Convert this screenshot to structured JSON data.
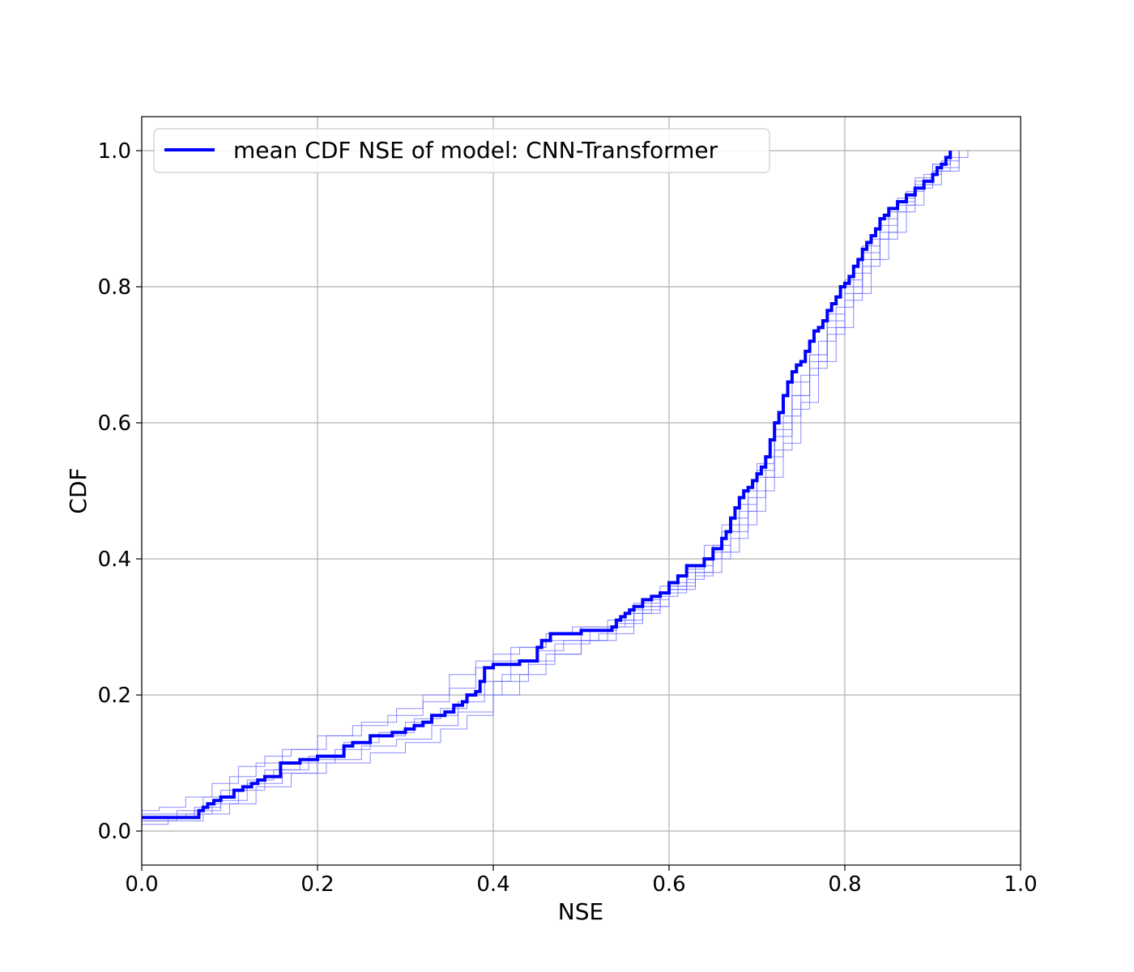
{
  "chart_data": {
    "type": "line",
    "title": "",
    "xlabel": "NSE",
    "ylabel": "CDF",
    "xlim": [
      0.0,
      1.0
    ],
    "ylim": [
      -0.05,
      1.05
    ],
    "x_ticks": [
      "0.0",
      "0.2",
      "0.4",
      "0.6",
      "0.8",
      "1.0"
    ],
    "y_ticks": [
      "0.0",
      "0.2",
      "0.4",
      "0.6",
      "0.8",
      "1.0"
    ],
    "grid": true,
    "legend_placement": "top-left",
    "colors": {
      "mean": "#0000ff",
      "ensemble": "#6666ff",
      "grid": "#b0b0b0"
    },
    "series": [
      {
        "name": "mean CDF NSE of model: CNN-Transformer",
        "role": "mean",
        "x": [
          0.0,
          0.065,
          0.07,
          0.075,
          0.082,
          0.09,
          0.105,
          0.115,
          0.125,
          0.132,
          0.14,
          0.158,
          0.18,
          0.2,
          0.23,
          0.24,
          0.26,
          0.285,
          0.3,
          0.31,
          0.32,
          0.33,
          0.345,
          0.355,
          0.365,
          0.37,
          0.38,
          0.385,
          0.39,
          0.4,
          0.43,
          0.45,
          0.455,
          0.465,
          0.5,
          0.535,
          0.54,
          0.545,
          0.55,
          0.555,
          0.56,
          0.57,
          0.58,
          0.59,
          0.6,
          0.61,
          0.62,
          0.64,
          0.65,
          0.66,
          0.665,
          0.67,
          0.675,
          0.68,
          0.685,
          0.69,
          0.695,
          0.7,
          0.705,
          0.71,
          0.715,
          0.72,
          0.725,
          0.73,
          0.735,
          0.74,
          0.745,
          0.75,
          0.755,
          0.76,
          0.765,
          0.77,
          0.775,
          0.78,
          0.785,
          0.79,
          0.795,
          0.8,
          0.805,
          0.81,
          0.815,
          0.82,
          0.825,
          0.83,
          0.835,
          0.84,
          0.845,
          0.85,
          0.86,
          0.87,
          0.88,
          0.89,
          0.9,
          0.905,
          0.91,
          0.915,
          0.92
        ],
        "y": [
          0.02,
          0.03,
          0.035,
          0.04,
          0.045,
          0.05,
          0.06,
          0.065,
          0.07,
          0.075,
          0.08,
          0.1,
          0.105,
          0.11,
          0.125,
          0.13,
          0.14,
          0.145,
          0.15,
          0.155,
          0.16,
          0.17,
          0.175,
          0.185,
          0.19,
          0.2,
          0.205,
          0.22,
          0.24,
          0.245,
          0.25,
          0.27,
          0.28,
          0.29,
          0.295,
          0.3,
          0.31,
          0.315,
          0.32,
          0.325,
          0.33,
          0.34,
          0.345,
          0.35,
          0.365,
          0.375,
          0.39,
          0.4,
          0.415,
          0.43,
          0.44,
          0.46,
          0.475,
          0.49,
          0.5,
          0.505,
          0.515,
          0.525,
          0.535,
          0.55,
          0.575,
          0.6,
          0.615,
          0.64,
          0.66,
          0.675,
          0.685,
          0.69,
          0.705,
          0.72,
          0.735,
          0.74,
          0.75,
          0.765,
          0.775,
          0.785,
          0.8,
          0.805,
          0.815,
          0.83,
          0.84,
          0.855,
          0.865,
          0.875,
          0.885,
          0.9,
          0.905,
          0.915,
          0.925,
          0.935,
          0.945,
          0.955,
          0.965,
          0.975,
          0.98,
          0.99,
          1.0
        ]
      }
    ],
    "ensemble": [
      {
        "x": [
          0.0,
          0.04,
          0.07,
          0.1,
          0.13,
          0.16,
          0.2,
          0.24,
          0.28,
          0.32,
          0.35,
          0.38,
          0.4,
          0.43,
          0.46,
          0.5,
          0.55,
          0.58,
          0.6,
          0.63,
          0.65,
          0.67,
          0.69,
          0.7,
          0.72,
          0.74,
          0.76,
          0.78,
          0.8,
          0.82,
          0.84,
          0.86,
          0.88,
          0.9,
          0.92,
          0.94
        ],
        "y": [
          0.015,
          0.03,
          0.05,
          0.08,
          0.1,
          0.12,
          0.14,
          0.155,
          0.17,
          0.19,
          0.21,
          0.24,
          0.26,
          0.27,
          0.28,
          0.3,
          0.32,
          0.34,
          0.36,
          0.39,
          0.42,
          0.46,
          0.5,
          0.54,
          0.6,
          0.66,
          0.7,
          0.76,
          0.81,
          0.86,
          0.9,
          0.93,
          0.96,
          0.98,
          0.99,
          1.0
        ]
      },
      {
        "x": [
          0.0,
          0.05,
          0.08,
          0.11,
          0.14,
          0.18,
          0.22,
          0.26,
          0.3,
          0.33,
          0.36,
          0.39,
          0.42,
          0.45,
          0.48,
          0.52,
          0.56,
          0.59,
          0.62,
          0.64,
          0.66,
          0.68,
          0.7,
          0.72,
          0.74,
          0.76,
          0.78,
          0.8,
          0.82,
          0.84,
          0.86,
          0.88,
          0.9,
          0.93
        ],
        "y": [
          0.02,
          0.025,
          0.04,
          0.06,
          0.09,
          0.1,
          0.12,
          0.14,
          0.16,
          0.17,
          0.19,
          0.22,
          0.25,
          0.265,
          0.28,
          0.29,
          0.32,
          0.35,
          0.37,
          0.4,
          0.44,
          0.47,
          0.52,
          0.58,
          0.64,
          0.7,
          0.75,
          0.8,
          0.85,
          0.88,
          0.92,
          0.95,
          0.97,
          1.0
        ]
      },
      {
        "x": [
          0.0,
          0.03,
          0.06,
          0.09,
          0.12,
          0.15,
          0.19,
          0.23,
          0.27,
          0.31,
          0.34,
          0.37,
          0.41,
          0.44,
          0.47,
          0.51,
          0.54,
          0.57,
          0.6,
          0.62,
          0.65,
          0.67,
          0.69,
          0.71,
          0.73,
          0.75,
          0.77,
          0.79,
          0.81,
          0.83,
          0.85,
          0.87,
          0.89,
          0.91,
          0.93
        ],
        "y": [
          0.01,
          0.02,
          0.035,
          0.06,
          0.075,
          0.09,
          0.11,
          0.13,
          0.145,
          0.165,
          0.18,
          0.2,
          0.23,
          0.25,
          0.275,
          0.295,
          0.31,
          0.33,
          0.355,
          0.38,
          0.41,
          0.44,
          0.49,
          0.55,
          0.61,
          0.67,
          0.72,
          0.77,
          0.82,
          0.87,
          0.91,
          0.94,
          0.965,
          0.985,
          1.0
        ]
      },
      {
        "x": [
          0.0,
          0.06,
          0.09,
          0.12,
          0.16,
          0.2,
          0.25,
          0.29,
          0.33,
          0.36,
          0.4,
          0.44,
          0.47,
          0.5,
          0.53,
          0.56,
          0.59,
          0.61,
          0.63,
          0.66,
          0.68,
          0.7,
          0.72,
          0.74,
          0.76,
          0.78,
          0.8,
          0.82,
          0.84,
          0.86,
          0.88,
          0.9,
          0.92
        ],
        "y": [
          0.025,
          0.03,
          0.045,
          0.07,
          0.085,
          0.105,
          0.125,
          0.135,
          0.155,
          0.175,
          0.22,
          0.245,
          0.26,
          0.28,
          0.3,
          0.325,
          0.345,
          0.365,
          0.38,
          0.41,
          0.45,
          0.5,
          0.56,
          0.62,
          0.68,
          0.73,
          0.78,
          0.83,
          0.87,
          0.91,
          0.945,
          0.97,
          1.0
        ]
      },
      {
        "x": [
          0.0,
          0.02,
          0.05,
          0.08,
          0.11,
          0.14,
          0.17,
          0.21,
          0.25,
          0.29,
          0.32,
          0.35,
          0.38,
          0.42,
          0.46,
          0.49,
          0.53,
          0.56,
          0.59,
          0.62,
          0.64,
          0.66,
          0.68,
          0.7,
          0.72,
          0.74,
          0.76,
          0.78,
          0.8,
          0.82,
          0.84,
          0.86,
          0.88,
          0.9,
          0.92
        ],
        "y": [
          0.03,
          0.035,
          0.05,
          0.07,
          0.095,
          0.11,
          0.12,
          0.14,
          0.16,
          0.18,
          0.2,
          0.23,
          0.25,
          0.27,
          0.29,
          0.3,
          0.31,
          0.335,
          0.36,
          0.385,
          0.42,
          0.45,
          0.48,
          0.53,
          0.59,
          0.64,
          0.69,
          0.74,
          0.79,
          0.84,
          0.89,
          0.925,
          0.955,
          0.98,
          1.0
        ]
      },
      {
        "x": [
          0.0,
          0.07,
          0.1,
          0.13,
          0.17,
          0.21,
          0.26,
          0.3,
          0.34,
          0.37,
          0.4,
          0.43,
          0.46,
          0.5,
          0.54,
          0.57,
          0.6,
          0.63,
          0.65,
          0.67,
          0.69,
          0.71,
          0.73,
          0.75,
          0.77,
          0.79,
          0.81,
          0.83,
          0.85,
          0.87,
          0.89,
          0.91,
          0.93
        ],
        "y": [
          0.015,
          0.025,
          0.04,
          0.065,
          0.085,
          0.1,
          0.115,
          0.13,
          0.15,
          0.17,
          0.2,
          0.23,
          0.26,
          0.28,
          0.305,
          0.33,
          0.355,
          0.375,
          0.4,
          0.43,
          0.47,
          0.52,
          0.57,
          0.63,
          0.69,
          0.74,
          0.79,
          0.84,
          0.88,
          0.92,
          0.95,
          0.975,
          1.0
        ]
      }
    ]
  }
}
